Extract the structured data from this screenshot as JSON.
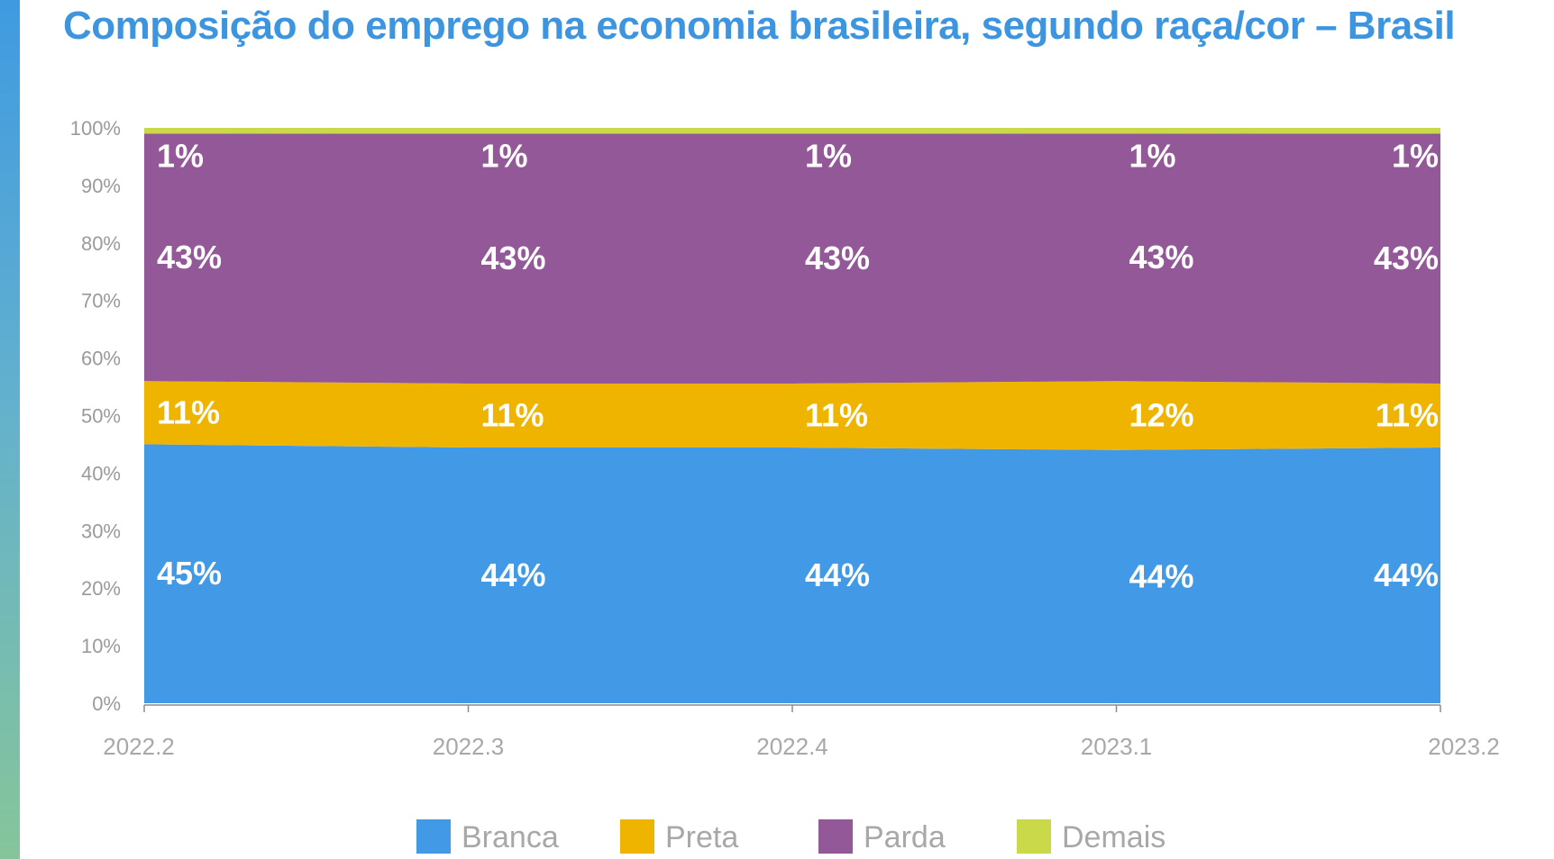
{
  "title": "Composição do emprego na economia brasileira, segundo raça/cor – Brasil",
  "chart_data": {
    "type": "area",
    "stacked": true,
    "normalized": true,
    "categories": [
      "2022.2",
      "2022.3",
      "2022.4",
      "2023.1",
      "2023.2"
    ],
    "series": [
      {
        "name": "Branca",
        "color": "#4299e6",
        "values": [
          45,
          44,
          44,
          44,
          44
        ],
        "labels": [
          "45%",
          "44%",
          "44%",
          "44%",
          "44%"
        ]
      },
      {
        "name": "Preta",
        "color": "#eeb400",
        "values": [
          11,
          11,
          11,
          12,
          11
        ],
        "labels": [
          "11%",
          "11%",
          "11%",
          "12%",
          "11%"
        ]
      },
      {
        "name": "Parda",
        "color": "#935898",
        "values": [
          43,
          43,
          43,
          43,
          43
        ],
        "labels": [
          "43%",
          "43%",
          "43%",
          "43%",
          "43%"
        ]
      },
      {
        "name": "Demais",
        "color": "#c9d94a",
        "values": [
          1,
          1,
          1,
          1,
          1
        ],
        "labels": [
          "1%",
          "1%",
          "1%",
          "1%",
          "1%"
        ]
      }
    ],
    "y_ticks": [
      "0%",
      "10%",
      "20%",
      "30%",
      "40%",
      "50%",
      "60%",
      "70%",
      "80%",
      "90%",
      "100%"
    ],
    "ylim": [
      0,
      100
    ],
    "grid": false,
    "legend": "bottom"
  }
}
